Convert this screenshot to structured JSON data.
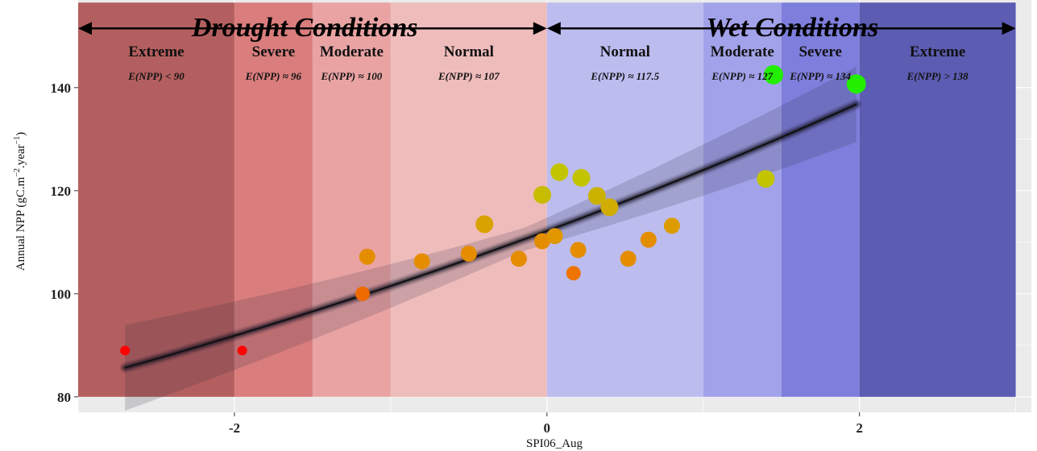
{
  "chart_data": {
    "type": "scatter",
    "xlabel": "SPI06_Aug",
    "ylabel": "Annual NPP (gC.m",
    "ylabel_sup1": "−2",
    "ylabel_mid": ".year",
    "ylabel_sup2": "−1",
    "ylabel_end": ")",
    "xlim": [
      -3.0,
      3.1
    ],
    "ylim": [
      77,
      157
    ],
    "x_ticks": [
      {
        "value": -2,
        "label": "-2"
      },
      {
        "value": 0,
        "label": "0"
      },
      {
        "value": 2,
        "label": "2"
      }
    ],
    "y_ticks": [
      {
        "value": 80,
        "label": "80"
      },
      {
        "value": 100,
        "label": "100"
      },
      {
        "value": 120,
        "label": "120"
      },
      {
        "value": 140,
        "label": "140"
      }
    ],
    "grid": true,
    "condition_titles": [
      {
        "text": "Drought Conditions",
        "x": -1.55
      },
      {
        "text": "Wet Conditions",
        "x": 1.57
      }
    ],
    "bands": [
      {
        "x0": -3.0,
        "x1": -2.0,
        "color": "#b45f5f",
        "label": "Extreme",
        "expect": "E(NPP) < 90"
      },
      {
        "x0": -2.0,
        "x1": -1.5,
        "color": "#d97d7d",
        "label": "Severe",
        "expect": "E(NPP) ≈ 96"
      },
      {
        "x0": -1.5,
        "x1": -1.0,
        "color": "#e9a3a3",
        "label": "Moderate",
        "expect": "E(NPP) ≈ 100"
      },
      {
        "x0": -1.0,
        "x1": 0.0,
        "color": "#efbcbc",
        "label": "Normal",
        "expect": "E(NPP) ≈ 107"
      },
      {
        "x0": 0.0,
        "x1": 1.0,
        "color": "#bcbcef",
        "label": "Normal",
        "expect": "E(NPP) ≈ 117.5"
      },
      {
        "x0": 1.0,
        "x1": 1.5,
        "color": "#a2a2ea",
        "label": "Moderate",
        "expect": "E(NPP) ≈ 127"
      },
      {
        "x0": 1.5,
        "x1": 2.0,
        "color": "#7e7edc",
        "label": "Severe",
        "expect": "E(NPP) ≈ 134"
      },
      {
        "x0": 2.0,
        "x1": 3.0,
        "color": "#5c5cb2",
        "label": "Extreme",
        "expect": "E(NPP) > 138"
      }
    ],
    "trend": {
      "a": 112.2,
      "b": 0.1,
      "x_start": -2.7,
      "x_end": 1.98
    },
    "points": [
      {
        "x": -2.7,
        "y": 89,
        "size": 6,
        "color": "#ff0000"
      },
      {
        "x": -1.95,
        "y": 89,
        "size": 6,
        "color": "#ff0000"
      },
      {
        "x": -1.18,
        "y": 100,
        "size": 9,
        "color": "#ee6a00"
      },
      {
        "x": -1.15,
        "y": 107.2,
        "size": 10,
        "color": "#e48d00"
      },
      {
        "x": -0.8,
        "y": 106.3,
        "size": 10,
        "color": "#e48d00"
      },
      {
        "x": -0.5,
        "y": 107.8,
        "size": 10,
        "color": "#e48d00"
      },
      {
        "x": -0.4,
        "y": 113.5,
        "size": 11,
        "color": "#d8a300"
      },
      {
        "x": -0.18,
        "y": 106.8,
        "size": 10,
        "color": "#e48d00"
      },
      {
        "x": -0.03,
        "y": 110.2,
        "size": 10,
        "color": "#e48d00"
      },
      {
        "x": -0.03,
        "y": 119.2,
        "size": 11,
        "color": "#c8bc00"
      },
      {
        "x": 0.05,
        "y": 111.2,
        "size": 10,
        "color": "#e09700"
      },
      {
        "x": 0.08,
        "y": 123.6,
        "size": 11,
        "color": "#c2c400"
      },
      {
        "x": 0.17,
        "y": 104,
        "size": 9,
        "color": "#ee7300"
      },
      {
        "x": 0.2,
        "y": 108.5,
        "size": 10,
        "color": "#e48d00"
      },
      {
        "x": 0.22,
        "y": 122.5,
        "size": 11,
        "color": "#c2c400"
      },
      {
        "x": 0.32,
        "y": 119,
        "size": 11,
        "color": "#ccb200"
      },
      {
        "x": 0.4,
        "y": 116.8,
        "size": 11,
        "color": "#d0ad00"
      },
      {
        "x": 0.52,
        "y": 106.8,
        "size": 10,
        "color": "#e48d00"
      },
      {
        "x": 0.65,
        "y": 110.5,
        "size": 10,
        "color": "#e48d00"
      },
      {
        "x": 0.8,
        "y": 113.2,
        "size": 10,
        "color": "#dc9c00"
      },
      {
        "x": 1.4,
        "y": 122.3,
        "size": 11,
        "color": "#c2c400"
      },
      {
        "x": 1.45,
        "y": 142.5,
        "size": 12,
        "color": "#22ee00"
      },
      {
        "x": 1.98,
        "y": 140.7,
        "size": 12,
        "color": "#22ee00"
      }
    ]
  }
}
